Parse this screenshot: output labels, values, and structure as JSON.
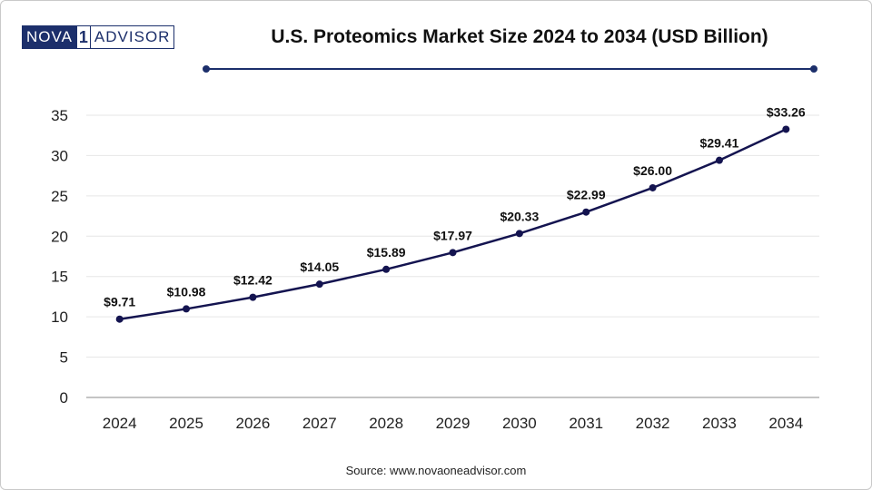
{
  "logo": {
    "part1": "NOVA",
    "mark": "1",
    "part2": "ADVISOR"
  },
  "title": "U.S. Proteomics Market Size 2024 to 2034 (USD Billion)",
  "source": "Source: www.novaoneadvisor.com",
  "colors": {
    "line": "#141450",
    "accent": "#1c2f6b",
    "grid": "#e6e6e6",
    "axis": "#b0b0b0"
  },
  "chart_data": {
    "type": "line",
    "title": "U.S. Proteomics Market Size 2024 to 2034 (USD Billion)",
    "xlabel": "",
    "ylabel": "",
    "categories": [
      "2024",
      "2025",
      "2026",
      "2027",
      "2028",
      "2029",
      "2030",
      "2031",
      "2032",
      "2033",
      "2034"
    ],
    "series": [
      {
        "values": [
          9.71,
          10.98,
          12.42,
          14.05,
          15.89,
          17.97,
          20.33,
          22.99,
          26.0,
          29.41,
          33.26
        ],
        "labels": [
          "$9.71",
          "$10.98",
          "$12.42",
          "$14.05",
          "$15.89",
          "$17.97",
          "$20.33",
          "$22.99",
          "$26.00",
          "$29.41",
          "$33.26"
        ]
      }
    ],
    "ylim": [
      0,
      35
    ],
    "yticks": [
      0,
      5,
      10,
      15,
      20,
      25,
      30,
      35
    ],
    "grid": true,
    "legend": "none"
  }
}
